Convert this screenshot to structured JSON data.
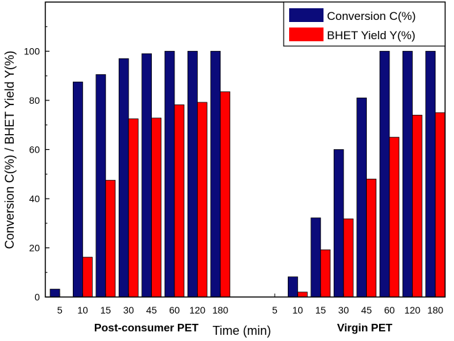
{
  "chart_data": {
    "type": "bar",
    "ylabel": "Conversion C(%) / BHET Yield Y(%)",
    "xlabel": "Time (min)",
    "ylim": [
      0,
      120
    ],
    "yticks": [
      0,
      20,
      40,
      60,
      80,
      100
    ],
    "colors": {
      "conversion": "#0b0b7a",
      "yield": "#ff0000"
    },
    "legend_position": "top-right",
    "groups": [
      {
        "label": "Post-consumer  PET",
        "categories": [
          "5",
          "10",
          "15",
          "30",
          "45",
          "60",
          "120",
          "180"
        ],
        "series": [
          {
            "name": "Conversion C(%)",
            "values": [
              3.2,
              87.5,
              90.5,
              97,
              99,
              100,
              100,
              100
            ]
          },
          {
            "name": "BHET Yield Y(%)",
            "values": [
              0,
              16.2,
              47.5,
              72.5,
              72.8,
              78.2,
              79.2,
              83.5
            ]
          }
        ]
      },
      {
        "label": "Virgin PET",
        "categories": [
          "5",
          "10",
          "15",
          "30",
          "45",
          "60",
          "120",
          "180"
        ],
        "series": [
          {
            "name": "Conversion C(%)",
            "values": [
              0,
              8.2,
              32.2,
              60,
              81,
              100,
              100,
              100
            ]
          },
          {
            "name": "BHET Yield Y(%)",
            "values": [
              0,
              2,
              19.2,
              31.8,
              48,
              65,
              74,
              75
            ]
          }
        ]
      }
    ]
  }
}
